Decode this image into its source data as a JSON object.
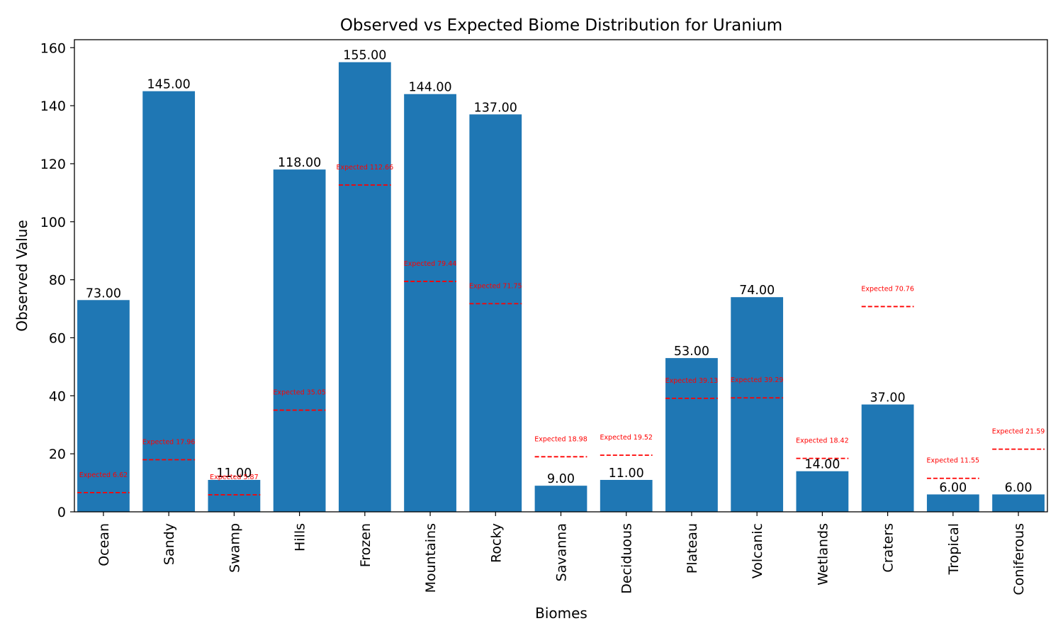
{
  "chart_data": {
    "type": "bar",
    "title": "Observed vs Expected Biome Distribution for Uranium",
    "xlabel": "Biomes",
    "ylabel": "Observed Value",
    "ylim": [
      0,
      162.75
    ],
    "yticks": [
      0,
      20,
      40,
      60,
      80,
      100,
      120,
      140,
      160
    ],
    "grid": false,
    "bar_color": "#1f77b4",
    "expected_color": "#ff0000",
    "expected_prefix": "Expected",
    "categories": [
      "Ocean",
      "Sandy",
      "Swamp",
      "Hills",
      "Frozen",
      "Mountains",
      "Rocky",
      "Savanna",
      "Deciduous",
      "Plateau",
      "Volcanic",
      "Wetlands",
      "Craters",
      "Tropical",
      "Coniferous"
    ],
    "series": [
      {
        "name": "Observed",
        "values": [
          73,
          145,
          11,
          118,
          155,
          144,
          137,
          9,
          11,
          53,
          74,
          14,
          37,
          6,
          6
        ],
        "labels": [
          "73.00",
          "145.00",
          "11.00",
          "118.00",
          "155.00",
          "144.00",
          "137.00",
          "9.00",
          "11.00",
          "53.00",
          "74.00",
          "14.00",
          "37.00",
          "6.00",
          "6.00"
        ]
      },
      {
        "name": "Expected",
        "values": [
          6.62,
          17.96,
          5.87,
          35.05,
          112.66,
          79.44,
          71.75,
          18.98,
          19.52,
          39.13,
          39.29,
          18.42,
          70.76,
          11.55,
          21.59
        ],
        "labels": [
          "6.62",
          "17.96",
          "5.87",
          "35.05",
          "112.66",
          "79.44",
          "71.75",
          "18.98",
          "19.52",
          "39.13",
          "39.29",
          "18.42",
          "70.76",
          "11.55",
          "21.59"
        ]
      }
    ]
  }
}
